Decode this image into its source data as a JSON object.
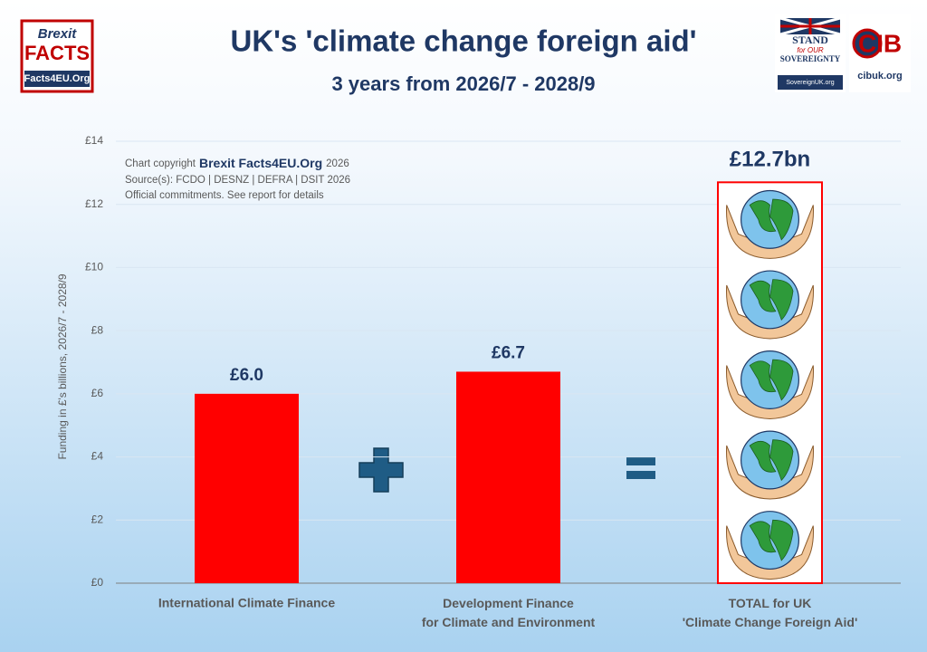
{
  "chart_data": {
    "type": "bar",
    "title": "UK's 'climate change foreign aid'",
    "subtitle": "3 years from 2026/7 - 2028/9",
    "y_label": "Funding in £'s billions, 2026/7 - 2028/9",
    "copyright": [
      "Chart copyright",
      "Brexit Facts4EU.Org",
      "2026"
    ],
    "sources": "Source(s): FCDO | DESNZ | DEFRA | DSIT 2026",
    "note": "Official commitments. See report for details",
    "categories": [
      "International Climate Finance",
      "Development Finance\nfor Climate and Environment",
      "TOTAL for UK\n'Climate Change Foreign Aid'"
    ],
    "values": [
      6.0,
      6.7,
      12.7
    ],
    "value_labels": [
      "£6.0",
      "£6.7",
      "£12.7bn"
    ],
    "color": "#ff0000",
    "ylim": [
      0,
      14
    ],
    "yticks": [
      {
        "value": 0,
        "label": "£0"
      },
      {
        "value": 2,
        "label": "£2"
      },
      {
        "value": 4,
        "label": "£4"
      },
      {
        "value": 6,
        "label": "£6"
      },
      {
        "value": 8,
        "label": "£8"
      },
      {
        "value": 10,
        "label": "£10"
      },
      {
        "value": 12,
        "label": "£12"
      },
      {
        "value": 14,
        "label": "£14"
      }
    ],
    "grid": true
  },
  "logos": {
    "brexit_facts": [
      "Brexit",
      "FACTS",
      "Facts4EU.Org"
    ],
    "sovereignty": [
      "STAND",
      "for OUR",
      "SOVEREIGNTY",
      "SovereignUK.org"
    ],
    "cib": [
      "CIB",
      "cibuk.org"
    ]
  }
}
